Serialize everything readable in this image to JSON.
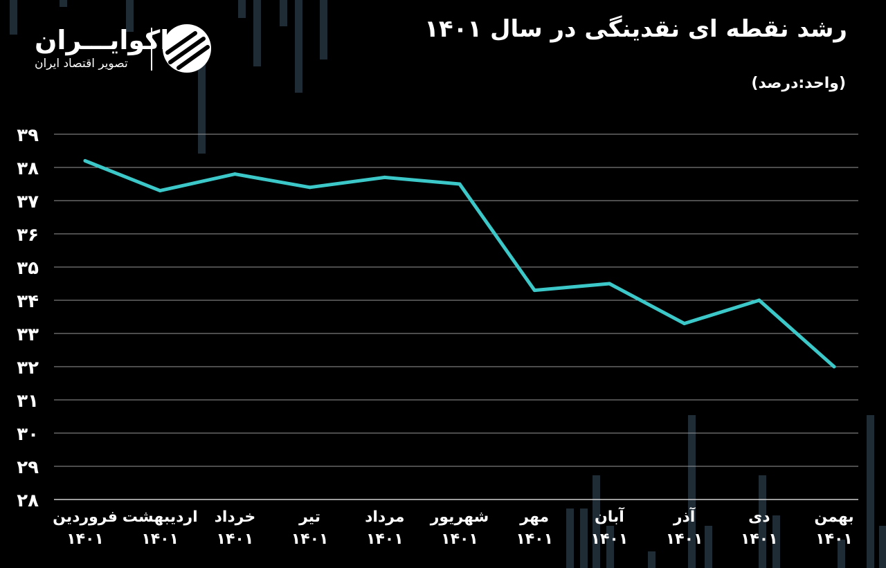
{
  "header": {
    "title": "رشد نقطه ای نقدینگی در سال ۱۴۰۱",
    "unit": "(واحد:درصد)"
  },
  "logo": {
    "name": "اکوایـــران",
    "tagline": "تصویر اقتصاد ایران"
  },
  "colors": {
    "background": "#000000",
    "line": "#3cc8c8",
    "grid": "#9a9a9a",
    "text": "#ffffff",
    "decor_bars": "#1f2c36"
  },
  "chart_data": {
    "type": "line",
    "title": "رشد نقطه ای نقدینگی در سال ۱۴۰۱",
    "unit_label": "(واحد:درصد)",
    "categories": [
      [
        "فروردین",
        "۱۴۰۱"
      ],
      [
        "اردیبهشت",
        "۱۴۰۱"
      ],
      [
        "خرداد",
        "۱۴۰۱"
      ],
      [
        "تیر",
        "۱۴۰۱"
      ],
      [
        "مرداد",
        "۱۴۰۱"
      ],
      [
        "شهریور",
        "۱۴۰۱"
      ],
      [
        "مهر",
        "۱۴۰۱"
      ],
      [
        "آبان",
        "۱۴۰۱"
      ],
      [
        "آذر",
        "۱۴۰۱"
      ],
      [
        "دی",
        "۱۴۰۱"
      ],
      [
        "بهمن",
        "۱۴۰۱"
      ]
    ],
    "series": [
      {
        "values": [
          38.2,
          37.3,
          37.8,
          37.4,
          37.7,
          37.5,
          34.3,
          34.5,
          33.3,
          34.0,
          32.0
        ]
      }
    ],
    "y_ticks": [
      "۳۹",
      "۳۸",
      "۳۷",
      "۳۶",
      "۳۵",
      "۳۴",
      "۳۳",
      "۳۲",
      "۳۱",
      "۳۰",
      "۲۹",
      "۲۸"
    ],
    "ylim": [
      28,
      39
    ],
    "grid": true,
    "legend": "none"
  }
}
